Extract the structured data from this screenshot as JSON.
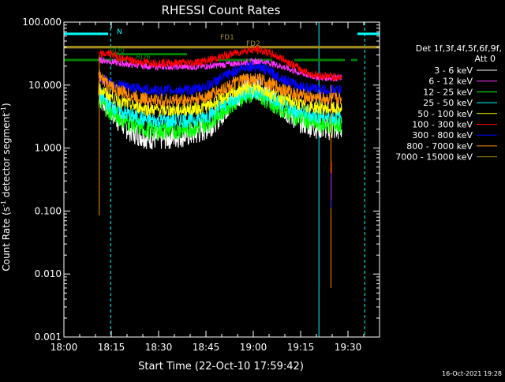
{
  "chart_data": {
    "type": "line",
    "title": "RHESSI Count Rates",
    "xlabel": "Start Time (22-Oct-10 17:59:42)",
    "ylabel": "Count Rate (s⁻¹ detector segment⁻¹)",
    "ylabel_parts": {
      "main": "Count Rate (s",
      "exp1": "-1",
      "mid": " detector segment",
      "exp2": "-1",
      "end": ")"
    },
    "y_scale": "log",
    "ylim": [
      0.001,
      100
    ],
    "x_ticks": [
      "18:00",
      "18:15",
      "18:30",
      "18:45",
      "19:00",
      "19:15",
      "19:30"
    ],
    "x_tick_minutes": [
      0,
      15,
      30,
      45,
      60,
      75,
      90
    ],
    "xlim_minutes": [
      0,
      100
    ],
    "y_ticks": [
      "0.001",
      "0.010",
      "0.100",
      "1.000",
      "10.000",
      "100.000"
    ],
    "y_tick_values": [
      0.001,
      0.01,
      0.1,
      1,
      10,
      100
    ],
    "legend_header": [
      "Det 1f,3f,4f,5f,6f,9f,",
      "Att 0"
    ],
    "legend_placement": "right",
    "series": [
      {
        "name": "3 - 6 keV",
        "color": "#ffffff",
        "x": [
          11,
          14,
          18,
          22,
          26,
          30,
          34,
          38,
          42,
          46,
          50,
          54,
          58,
          62,
          66,
          70,
          74,
          78,
          82,
          86,
          88
        ],
        "values": [
          7,
          4.5,
          2.5,
          1.8,
          1.5,
          1.4,
          1.5,
          1.6,
          1.7,
          2.2,
          3.5,
          6,
          9.5,
          9,
          6,
          4,
          2.8,
          2.3,
          2.1,
          2.0,
          2.0
        ]
      },
      {
        "name": "6 - 12 keV",
        "color": "#ff33ff",
        "x": [
          11,
          14,
          18,
          22,
          26,
          30,
          34,
          38,
          42,
          46,
          50,
          54,
          58,
          62,
          66,
          70,
          74,
          78,
          82,
          86,
          88
        ],
        "values": [
          25,
          24,
          22,
          21,
          20,
          19.5,
          19.5,
          19.5,
          19.5,
          20,
          21,
          22,
          23,
          24,
          22,
          19,
          16,
          14,
          13,
          13,
          13
        ]
      },
      {
        "name": "12 - 25 keV",
        "color": "#00ff00",
        "x": [
          11,
          14,
          18,
          22,
          26,
          30,
          34,
          38,
          42,
          46,
          50,
          54,
          58,
          62,
          66,
          70,
          74,
          78,
          82,
          86,
          88
        ],
        "values": [
          6,
          4,
          3,
          2.4,
          2.0,
          1.9,
          1.9,
          2.0,
          2.1,
          2.6,
          3.8,
          5.5,
          7,
          6.8,
          5.2,
          4,
          3.1,
          2.6,
          2.4,
          2.3,
          2.3
        ]
      },
      {
        "name": "25 - 50 keV",
        "color": "#00ffff",
        "x": [
          11,
          14,
          18,
          22,
          26,
          30,
          34,
          38,
          42,
          46,
          50,
          54,
          58,
          62,
          66,
          70,
          74,
          78,
          82,
          86,
          88
        ],
        "values": [
          7.5,
          5,
          3.8,
          3.2,
          2.8,
          2.7,
          2.7,
          2.8,
          2.9,
          3.4,
          4.6,
          6.2,
          7.8,
          7.6,
          6,
          4.8,
          3.9,
          3.4,
          3.2,
          3.1,
          3.1
        ]
      },
      {
        "name": "50 - 100 keV",
        "color": "#ffff00",
        "x": [
          11,
          14,
          18,
          22,
          26,
          30,
          34,
          38,
          42,
          46,
          50,
          54,
          58,
          62,
          66,
          70,
          74,
          78,
          82,
          86,
          88
        ],
        "values": [
          9,
          7,
          5.5,
          4.7,
          4.2,
          4.0,
          4.0,
          4.1,
          4.2,
          4.7,
          6,
          7.6,
          9,
          8.8,
          7.2,
          6,
          5,
          4.5,
          4.3,
          4.2,
          4.2
        ]
      },
      {
        "name": "100 - 300 keV",
        "color": "#ff0000",
        "x": [
          11,
          14,
          18,
          22,
          26,
          30,
          34,
          38,
          42,
          46,
          50,
          54,
          58,
          62,
          66,
          70,
          74,
          78,
          82,
          86,
          88
        ],
        "values": [
          30,
          32,
          27,
          24,
          23,
          22.5,
          22.5,
          22.5,
          23,
          25,
          28,
          32,
          36,
          36,
          31,
          25,
          19,
          15,
          14,
          13.5,
          13.5
        ]
      },
      {
        "name": "300 - 800 keV",
        "color": "#0000ff",
        "x": [
          11,
          14,
          18,
          22,
          26,
          30,
          34,
          38,
          42,
          46,
          50,
          54,
          58,
          62,
          66,
          70,
          74,
          78,
          82,
          86,
          88
        ],
        "values": [
          13,
          11.5,
          10,
          9,
          8.5,
          8.2,
          8.2,
          8.3,
          8.6,
          10,
          13,
          16.5,
          20,
          19.5,
          15.5,
          12,
          9.8,
          8.8,
          8.4,
          8.3,
          8.3
        ]
      },
      {
        "name": "800 - 7000 keV",
        "color": "#ff8c00",
        "x": [
          11,
          14,
          18,
          22,
          26,
          30,
          34,
          38,
          42,
          46,
          50,
          54,
          58,
          62,
          66,
          70,
          74,
          78,
          82,
          86,
          88
        ],
        "values": [
          15,
          10,
          8,
          6.6,
          6,
          5.7,
          5.7,
          5.8,
          6,
          6.8,
          8.5,
          10.5,
          12.5,
          12.2,
          10,
          8.4,
          7.1,
          6.4,
          6.1,
          6.0,
          6.0
        ]
      },
      {
        "name": "7000 - 15000 keV",
        "color": "#a08c1e",
        "x": [],
        "values": []
      }
    ],
    "annotations": [
      {
        "text": "N",
        "color": "#00ffff",
        "segments": [
          [
            0,
            14
          ],
          [
            93,
            100
          ]
        ],
        "level": 65
      },
      {
        "text": "FD1",
        "color": "#a08c1e",
        "segments": [
          [
            0,
            100
          ]
        ],
        "level": 40
      },
      {
        "text": "FD2",
        "color": "#a08c1e",
        "segments": [
          [
            0,
            100
          ]
        ],
        "level": 40
      },
      {
        "text": "RD0",
        "color": "#008000",
        "segments": [
          [
            0,
            13
          ],
          [
            13,
            20
          ],
          [
            48,
            66
          ],
          [
            73,
            89
          ],
          [
            91,
            93
          ]
        ],
        "level": 25
      },
      {
        "text": "RD6",
        "color": "#008000",
        "segments": [
          [
            15,
            20
          ],
          [
            20,
            39
          ]
        ],
        "level": 31
      }
    ],
    "vlines": [
      {
        "color": "#00ffff",
        "x": 0,
        "style": "solid"
      },
      {
        "color": "#00ffff",
        "x": 14.8,
        "style": "dashed"
      },
      {
        "color": "#00ffff",
        "x": 80.8,
        "style": "solid"
      },
      {
        "color": "#00ffff",
        "x": 95.3,
        "style": "dashed"
      }
    ],
    "spikes": [
      {
        "color": "#ff8c00",
        "x": 11.2,
        "from": 0.085,
        "to": 30
      },
      {
        "color": "#ff8c00",
        "x": 84.6,
        "from": 0.006,
        "to": 10
      },
      {
        "color": "#ff0000",
        "x": 84.8,
        "from": 0.15,
        "to": 0.6
      },
      {
        "color": "#0000ff",
        "x": 84.7,
        "from": 0.11,
        "to": 0.4
      }
    ]
  },
  "footer": {
    "timestamp": "16-Oct-2021 19:28"
  }
}
